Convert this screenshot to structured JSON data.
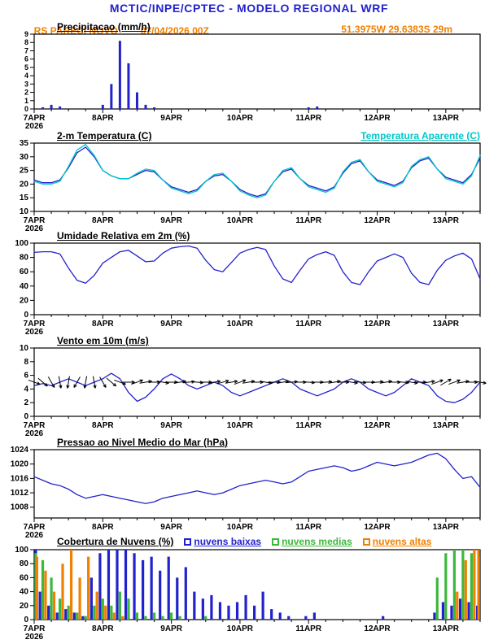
{
  "header": {
    "title": "MCTIC/INPE/CPTEC - MODELO REGIONAL WRF",
    "station": "RS PARECI NOVO",
    "datetime": "07/04/2026 00Z",
    "coords": "51.3975W 29.6383S 29m"
  },
  "palette": {
    "title_blue": "#2222cc",
    "orange": "#f08000",
    "cyan": "#00c8c8",
    "green": "#3cb83c",
    "black": "#000000"
  },
  "x_axis": {
    "hours_step": 3,
    "total_hours": 156,
    "day_hours": [
      0,
      24,
      48,
      72,
      96,
      120,
      144
    ],
    "day_labels": [
      "7APR",
      "8APR",
      "9APR",
      "10APR",
      "11APR",
      "12APR",
      "13APR"
    ],
    "year_label": "2026"
  },
  "chart_data": [
    {
      "type": "bar",
      "title": "Precipitacao (mm/h)",
      "ylim": [
        0,
        9
      ],
      "yticks": [
        0,
        1,
        2,
        3,
        4,
        5,
        6,
        7,
        8,
        9
      ],
      "series": [
        {
          "name": "precipitacao",
          "color": "#2222cc",
          "values": [
            0,
            0.2,
            0.5,
            0.3,
            0,
            0,
            0,
            0,
            0.5,
            3,
            8.2,
            5.5,
            2,
            0.5,
            0.2,
            0,
            0,
            0,
            0,
            0,
            0,
            0,
            0,
            0,
            0,
            0,
            0,
            0,
            0,
            0,
            0,
            0,
            0.2,
            0.3,
            0,
            0,
            0,
            0,
            0,
            0,
            0,
            0,
            0,
            0,
            0,
            0,
            0,
            0,
            0,
            0,
            0,
            0,
            0
          ]
        }
      ]
    },
    {
      "type": "line",
      "title": "2-m Temperatura (C)",
      "ylim": [
        10,
        35
      ],
      "yticks": [
        10,
        15,
        20,
        25,
        30,
        35
      ],
      "series": [
        {
          "name": "2-m Temperatura (C)",
          "color": "#2222cc",
          "values": [
            21.5,
            20.5,
            20.5,
            21.5,
            26,
            31.5,
            33.5,
            30,
            25,
            23,
            22,
            22,
            23.5,
            25,
            24.5,
            21.5,
            19,
            18,
            17,
            18,
            21,
            23,
            23.5,
            21,
            18,
            16.5,
            15.5,
            16.5,
            21,
            24.5,
            25.5,
            22,
            19.5,
            18.5,
            17.5,
            19,
            24,
            27.5,
            28.5,
            24.5,
            21.5,
            20.5,
            19.5,
            21,
            26,
            28.5,
            29.5,
            25.5,
            22.5,
            21.5,
            20.5,
            23.5,
            29.5
          ]
        },
        {
          "name": "Temperatura Aparente (C)",
          "color": "#00c8c8",
          "values": [
            21,
            20,
            20,
            21,
            26.5,
            32.5,
            34.5,
            30.5,
            25,
            23,
            22,
            22,
            24,
            25.5,
            25,
            21.5,
            18.5,
            17.5,
            16.5,
            17.5,
            21,
            23.5,
            24,
            21,
            17.5,
            16,
            15,
            16,
            21,
            25,
            26,
            22,
            19,
            18,
            17,
            18.5,
            24.5,
            28,
            29,
            24.5,
            21,
            20,
            19,
            20.5,
            26.5,
            29,
            30,
            25.5,
            22,
            21,
            20,
            23,
            30.5
          ]
        }
      ]
    },
    {
      "type": "line",
      "title": "Umidade Relativa em 2m (%)",
      "ylim": [
        0,
        100
      ],
      "yticks": [
        0,
        20,
        40,
        60,
        80,
        100
      ],
      "series": [
        {
          "name": "umidade relativa",
          "color": "#2222cc",
          "values": [
            87,
            88,
            88,
            85,
            65,
            48,
            44,
            55,
            72,
            80,
            88,
            90,
            82,
            74,
            75,
            86,
            93,
            95,
            96,
            93,
            76,
            63,
            60,
            73,
            86,
            91,
            94,
            91,
            68,
            50,
            45,
            62,
            78,
            84,
            88,
            83,
            60,
            45,
            42,
            60,
            75,
            80,
            85,
            80,
            58,
            45,
            42,
            62,
            76,
            82,
            86,
            78,
            50
          ]
        }
      ]
    },
    {
      "type": "line",
      "title": "Vento em 10m (m/s)",
      "ylim": [
        0,
        10
      ],
      "yticks": [
        0,
        2,
        4,
        6,
        8,
        10
      ],
      "barb_y": 5,
      "barb_dirs": [
        -20,
        -40,
        -60,
        -80,
        -100,
        -120,
        -100,
        -80,
        -60,
        -40,
        -20,
        0,
        20,
        10,
        0,
        -10,
        0,
        10,
        5,
        -5,
        0,
        10,
        15,
        10,
        20,
        10,
        0,
        -10,
        0,
        10,
        5,
        0,
        -5,
        0,
        5,
        10,
        0,
        -10,
        -5,
        0,
        5,
        10,
        0,
        -5,
        -10,
        0,
        10,
        20,
        30,
        20,
        10,
        0,
        -10
      ],
      "series": [
        {
          "name": "velocidade do vento",
          "color": "#2222cc",
          "values": [
            4.5,
            4.8,
            4.5,
            5,
            5.5,
            5,
            4.5,
            5,
            5.5,
            6.3,
            5.5,
            3.5,
            2.2,
            2.8,
            4,
            5.5,
            6.2,
            5.5,
            4.5,
            4,
            4.5,
            5,
            4.5,
            3.5,
            3,
            3.5,
            4,
            4.5,
            5,
            5.5,
            5,
            4,
            3.5,
            3,
            3.5,
            4,
            5,
            5.5,
            5,
            4,
            3.5,
            3,
            3.5,
            4.5,
            5.5,
            5,
            4.5,
            3,
            2.2,
            2,
            2.5,
            3.5,
            5
          ]
        }
      ]
    },
    {
      "type": "line",
      "title": "Pressao ao Nivel Medio do Mar (hPa)",
      "ylim": [
        1005,
        1024
      ],
      "yticks": [
        1008,
        1012,
        1016,
        1020,
        1024
      ],
      "series": [
        {
          "name": "pressao ao nivel do mar",
          "color": "#2222cc",
          "values": [
            1016.5,
            1015.5,
            1014.5,
            1014,
            1013,
            1011.5,
            1010.5,
            1011,
            1011.5,
            1011,
            1010.5,
            1010,
            1009.5,
            1009,
            1009.5,
            1010.5,
            1011,
            1011.5,
            1012,
            1012.5,
            1012,
            1011.5,
            1012,
            1013,
            1014,
            1014.5,
            1015,
            1015.5,
            1015,
            1014.5,
            1015,
            1016.5,
            1018,
            1018.5,
            1019,
            1019.5,
            1019,
            1018,
            1018.5,
            1019.5,
            1020.5,
            1020,
            1019.5,
            1020,
            1020.5,
            1021.5,
            1022.5,
            1023,
            1021.5,
            1018.5,
            1016,
            1016.5,
            1013.5
          ]
        }
      ]
    },
    {
      "type": "bar-group",
      "title": "Cobertura de Nuvens (%)",
      "ylim": [
        0,
        100
      ],
      "yticks": [
        0,
        20,
        40,
        60,
        80,
        100
      ],
      "legend_position": "title-row",
      "series": [
        {
          "name": "nuvens baixas",
          "color": "#2222cc",
          "values": [
            100,
            40,
            20,
            10,
            15,
            10,
            5,
            60,
            95,
            100,
            100,
            100,
            95,
            85,
            90,
            70,
            90,
            60,
            75,
            40,
            30,
            35,
            25,
            20,
            25,
            35,
            20,
            40,
            15,
            10,
            5,
            0,
            5,
            10,
            0,
            0,
            0,
            0,
            0,
            0,
            0,
            5,
            0,
            0,
            0,
            0,
            0,
            10,
            25,
            20,
            30,
            25,
            20
          ]
        },
        {
          "name": "nuvens medias",
          "color": "#3cb83c",
          "values": [
            95,
            85,
            60,
            30,
            20,
            10,
            5,
            20,
            30,
            20,
            40,
            30,
            10,
            5,
            10,
            5,
            10,
            5,
            0,
            0,
            5,
            0,
            0,
            0,
            0,
            0,
            0,
            0,
            0,
            0,
            0,
            0,
            0,
            0,
            0,
            0,
            0,
            0,
            0,
            0,
            0,
            0,
            0,
            0,
            0,
            0,
            0,
            60,
            95,
            100,
            100,
            95,
            90
          ]
        },
        {
          "name": "nuvens altas",
          "color": "#f08000",
          "values": [
            90,
            70,
            40,
            80,
            100,
            60,
            90,
            40,
            20,
            10,
            5,
            0,
            0,
            0,
            0,
            0,
            0,
            0,
            0,
            0,
            0,
            0,
            0,
            0,
            0,
            0,
            0,
            0,
            0,
            0,
            0,
            0,
            0,
            0,
            0,
            0,
            0,
            0,
            0,
            0,
            0,
            0,
            0,
            0,
            0,
            0,
            0,
            0,
            0,
            40,
            85,
            100,
            100
          ]
        }
      ]
    }
  ]
}
